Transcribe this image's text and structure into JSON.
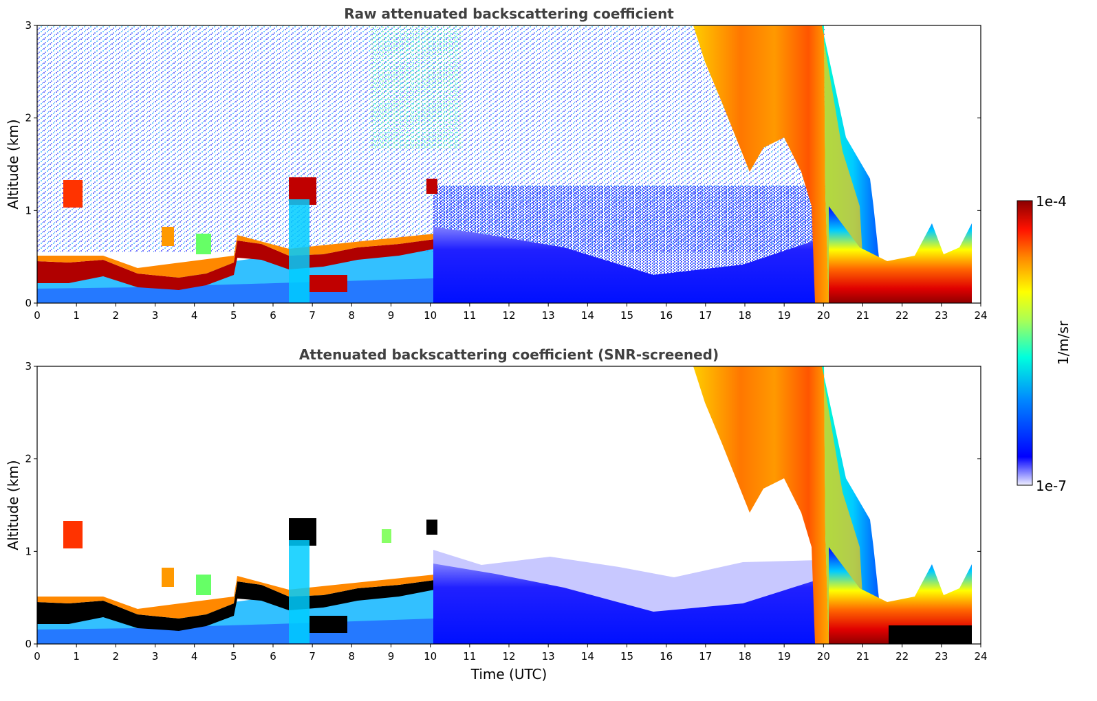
{
  "colors": {
    "background": "#ffffff",
    "title": "#404040",
    "colormap": [
      "#ffffff",
      "#0000ff",
      "#00aaff",
      "#00ffcc",
      "#ffff00",
      "#ff8800",
      "#ff0000",
      "#800000"
    ]
  },
  "chart_data": [
    {
      "type": "heatmap",
      "title": "Raw attenuated backscattering coefficient",
      "ylabel": "Altitude (km)",
      "xlabel": "",
      "xlim": [
        0,
        24
      ],
      "ylim": [
        0,
        3
      ],
      "xticks": [
        "0",
        "1",
        "2",
        "3",
        "4",
        "5",
        "6",
        "7",
        "8",
        "9",
        "10",
        "11",
        "12",
        "13",
        "14",
        "15",
        "16",
        "17",
        "18",
        "19",
        "20",
        "21",
        "22",
        "23",
        "24"
      ],
      "yticks": [
        "0",
        "1",
        "2",
        "3"
      ],
      "features": [
        {
          "name": "boundary layer top",
          "time_utc": [
            0,
            10.1
          ],
          "altitude_km": [
            0.25,
            0.65
          ],
          "level": "1e-4"
        },
        {
          "name": "noise aloft",
          "time_utc": [
            0,
            20
          ],
          "altitude_km": [
            0.7,
            3
          ],
          "level": "low"
        },
        {
          "name": "precipitation / cloud",
          "time_utc": [
            16.8,
            21.2
          ],
          "altitude_km": [
            0,
            3
          ],
          "level": "high"
        },
        {
          "name": "fog layer",
          "time_utc": [
            20.2,
            23.8
          ],
          "altitude_km": [
            0,
            0.8
          ],
          "level": "high"
        }
      ]
    },
    {
      "type": "heatmap",
      "title": "Attenuated backscattering coefficient (SNR-screened)",
      "ylabel": "Altitude (km)",
      "xlabel": "Time (UTC)",
      "xlim": [
        0,
        24
      ],
      "ylim": [
        0,
        3
      ],
      "xticks": [
        "0",
        "1",
        "2",
        "3",
        "4",
        "5",
        "6",
        "7",
        "8",
        "9",
        "10",
        "11",
        "12",
        "13",
        "14",
        "15",
        "16",
        "17",
        "18",
        "19",
        "20",
        "21",
        "22",
        "23",
        "24"
      ],
      "yticks": [
        "0",
        "1",
        "2",
        "3"
      ],
      "features": [
        {
          "name": "boundary layer top",
          "time_utc": [
            0,
            10.1
          ],
          "altitude_km": [
            0.25,
            0.65
          ],
          "level": "saturated"
        },
        {
          "name": "screened aerosol layer",
          "time_utc": [
            10.1,
            20.2
          ],
          "altitude_km": [
            0,
            0.85
          ],
          "level": "low"
        },
        {
          "name": "precipitation / cloud",
          "time_utc": [
            16.8,
            21.2
          ],
          "altitude_km": [
            0,
            3
          ],
          "level": "high"
        },
        {
          "name": "fog layer",
          "time_utc": [
            20.2,
            23.8
          ],
          "altitude_km": [
            0,
            0.8
          ],
          "level": "high"
        }
      ]
    }
  ],
  "colorbar": {
    "max_label": "1e-4",
    "min_label": "1e-7",
    "unit_label": "1/m/sr"
  }
}
